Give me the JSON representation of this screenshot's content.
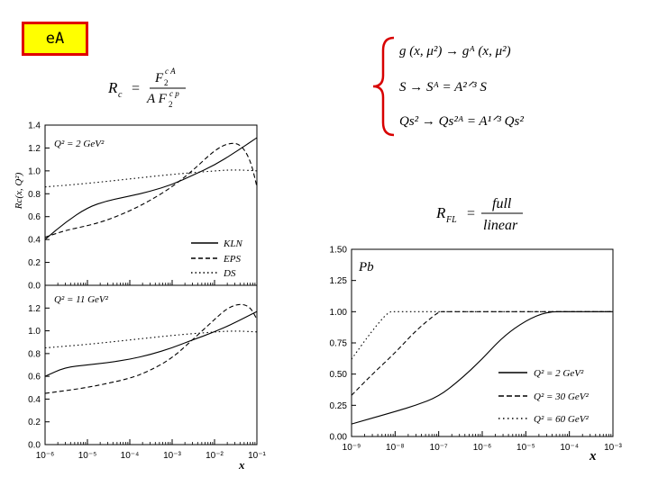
{
  "badge": {
    "label": "eA"
  },
  "formulas": {
    "rc_lhs": "R",
    "rc_lhs_sub": "c",
    "rc_eq": "=",
    "rc_num": "F",
    "rc_num_sub": "2",
    "rc_num_sup": "c A",
    "rc_den": "A F",
    "rc_den_sub": "2",
    "rc_den_sup": "c p",
    "g_line": "g (x, μ²)  →  gᴬ (x, μ²)",
    "s_line": "S → Sᴬ = A²ᐟ³ S",
    "q_line": "Qs² → Qs²ᴬ = A¹ᐟ³ Qs²",
    "rfl_lhs": "R",
    "rfl_sub": "FL",
    "rfl_eq": "=",
    "rfl_num": "full",
    "rfl_den": "linear"
  },
  "chart_data": [
    {
      "type": "line",
      "panel_label": "Q² = 2 GeV²",
      "ylabel": "Rc(x, Q²)",
      "xscale": "log",
      "xlim": [
        1e-06,
        0.1
      ],
      "ylim": [
        0,
        1.4
      ],
      "yticks": [
        "0.0",
        "0.2",
        "0.4",
        "0.6",
        "0.8",
        "1.0",
        "1.2",
        "1.4"
      ],
      "legend": {
        "position": "bottom-right",
        "entries": [
          "KLN",
          "EPS",
          "DS"
        ]
      },
      "series": [
        {
          "name": "KLN",
          "style": "solid",
          "x": [
            1e-06,
            3e-06,
            1e-05,
            3e-05,
            0.0001,
            0.0003,
            0.001,
            0.003,
            0.01,
            0.03,
            0.1
          ],
          "y": [
            0.4,
            0.55,
            0.68,
            0.74,
            0.78,
            0.82,
            0.88,
            0.96,
            1.05,
            1.16,
            1.29
          ]
        },
        {
          "name": "EPS",
          "style": "dashed",
          "x": [
            1e-06,
            3e-06,
            1e-05,
            3e-05,
            0.0001,
            0.0003,
            0.001,
            0.003,
            0.01,
            0.02,
            0.04,
            0.07,
            0.1
          ],
          "y": [
            0.42,
            0.48,
            0.52,
            0.57,
            0.65,
            0.74,
            0.86,
            1.0,
            1.18,
            1.24,
            1.24,
            1.1,
            0.86
          ]
        },
        {
          "name": "DS",
          "style": "dotted",
          "x": [
            1e-06,
            1e-05,
            0.0001,
            0.001,
            0.01,
            0.03,
            0.1
          ],
          "y": [
            0.86,
            0.89,
            0.93,
            0.97,
            1.0,
            1.01,
            1.0
          ]
        }
      ]
    },
    {
      "type": "line",
      "panel_label": "Q² = 11 GeV²",
      "xlabel": "x",
      "xscale": "log",
      "xlim": [
        1e-06,
        0.1
      ],
      "ylim": [
        0,
        1.4
      ],
      "xticks": [
        "10⁻⁶",
        "10⁻⁵",
        "10⁻⁴",
        "10⁻³",
        "10⁻²",
        "10⁻¹"
      ],
      "yticks": [
        "0.0",
        "0.2",
        "0.4",
        "0.6",
        "0.8",
        "1.0",
        "1.2"
      ],
      "series": [
        {
          "name": "KLN",
          "style": "solid",
          "x": [
            1e-06,
            3e-06,
            1e-05,
            3e-05,
            0.0001,
            0.0003,
            0.001,
            0.003,
            0.01,
            0.03,
            0.1
          ],
          "y": [
            0.6,
            0.68,
            0.7,
            0.72,
            0.75,
            0.79,
            0.85,
            0.92,
            0.99,
            1.07,
            1.17
          ]
        },
        {
          "name": "EPS",
          "style": "dashed",
          "x": [
            1e-06,
            1e-05,
            0.0001,
            0.0003,
            0.001,
            0.003,
            0.01,
            0.02,
            0.04,
            0.07,
            0.1
          ],
          "y": [
            0.45,
            0.5,
            0.58,
            0.65,
            0.76,
            0.92,
            1.1,
            1.2,
            1.24,
            1.21,
            1.1
          ]
        },
        {
          "name": "DS",
          "style": "dotted",
          "x": [
            1e-06,
            1e-05,
            0.0001,
            0.001,
            0.01,
            0.03,
            0.1
          ],
          "y": [
            0.85,
            0.88,
            0.92,
            0.96,
            0.99,
            1.0,
            0.99
          ]
        }
      ]
    },
    {
      "type": "line",
      "panel_label": "Pb",
      "xlabel": "x",
      "xscale": "log",
      "xlim": [
        1e-09,
        0.001
      ],
      "ylim": [
        0,
        1.5
      ],
      "xticks": [
        "10⁻⁹",
        "10⁻⁸",
        "10⁻⁷",
        "10⁻⁶",
        "10⁻⁵",
        "10⁻⁴",
        "10⁻³"
      ],
      "yticks": [
        "0.00",
        "0.25",
        "0.50",
        "0.75",
        "1.00",
        "1.25",
        "1.50"
      ],
      "legend": {
        "position": "bottom-right",
        "entries": [
          "Q² = 2 GeV²",
          "Q² = 30 GeV²",
          "Q² = 60 GeV²"
        ]
      },
      "series": [
        {
          "name": "Q² = 2 GeV²",
          "style": "solid",
          "x": [
            1e-09,
            1e-08,
            3e-08,
            1e-07,
            3e-07,
            1e-06,
            3e-06,
            1e-05,
            3e-05,
            0.0001,
            0.001
          ],
          "y": [
            0.1,
            0.2,
            0.25,
            0.32,
            0.45,
            0.62,
            0.8,
            0.93,
            1.0,
            1.0,
            1.0
          ]
        },
        {
          "name": "Q² = 30 GeV²",
          "style": "dashed",
          "x": [
            1e-09,
            3e-09,
            1e-08,
            3e-08,
            1e-07,
            1.2e-07,
            1e-06,
            0.001
          ],
          "y": [
            0.33,
            0.5,
            0.67,
            0.85,
            1.0,
            1.0,
            1.0,
            1.0
          ]
        },
        {
          "name": "Q² = 60 GeV²",
          "style": "dotted",
          "x": [
            1e-09,
            3e-09,
            7e-09,
            1e-08,
            1e-07,
            0.001
          ],
          "y": [
            0.62,
            0.85,
            1.0,
            1.0,
            1.0,
            1.0
          ]
        }
      ]
    }
  ]
}
